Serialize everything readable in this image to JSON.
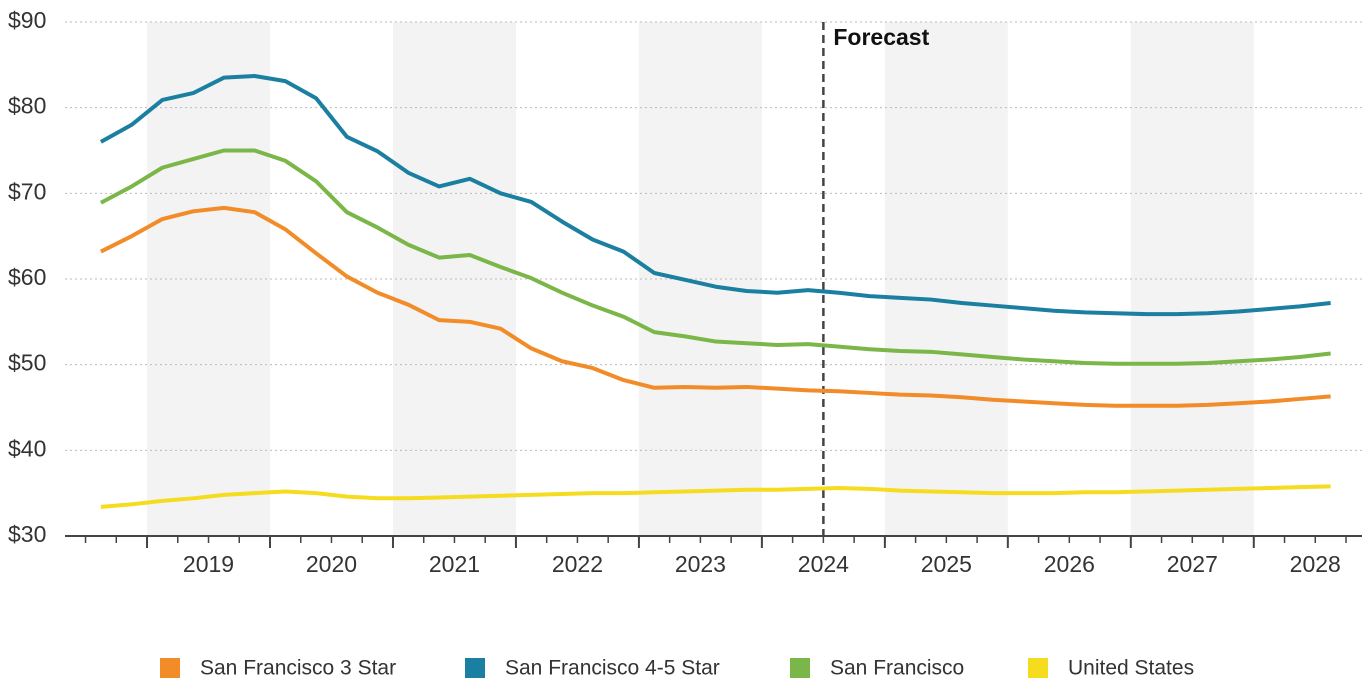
{
  "chart_data": {
    "type": "line",
    "x": [
      2018.625,
      2018.875,
      2019.125,
      2019.375,
      2019.625,
      2019.875,
      2020.125,
      2020.375,
      2020.625,
      2020.875,
      2021.125,
      2021.375,
      2021.625,
      2021.875,
      2022.125,
      2022.375,
      2022.625,
      2022.875,
      2023.125,
      2023.375,
      2023.625,
      2023.875,
      2024.125,
      2024.375,
      2024.625,
      2024.875,
      2025.125,
      2025.375,
      2025.625,
      2025.875,
      2026.125,
      2026.375,
      2026.625,
      2026.875,
      2027.125,
      2027.375,
      2027.625,
      2027.875,
      2028.125,
      2028.375,
      2028.625
    ],
    "series": [
      {
        "name": "San Francisco 3 Star",
        "color": "#f28c28",
        "values": [
          63.2,
          65,
          67,
          67.9,
          68.3,
          67.8,
          65.8,
          63,
          60.3,
          58.4,
          57,
          55.2,
          55,
          54.2,
          51.9,
          50.4,
          49.6,
          48.2,
          47.3,
          47.4,
          47.3,
          47.4,
          47.2,
          47,
          46.9,
          46.7,
          46.5,
          46.4,
          46.2,
          45.9,
          45.7,
          45.5,
          45.3,
          45.2,
          45.2,
          45.2,
          45.3,
          45.5,
          45.7,
          46,
          46.3
        ]
      },
      {
        "name": "San Francisco 4-5 Star",
        "color": "#1a7fa0",
        "values": [
          76,
          78,
          80.9,
          81.7,
          83.5,
          83.7,
          83.1,
          81.1,
          76.6,
          74.9,
          72.4,
          70.8,
          71.7,
          70,
          69,
          66.7,
          64.6,
          63.2,
          60.7,
          59.9,
          59.1,
          58.6,
          58.4,
          58.7,
          58.4,
          58,
          57.8,
          57.6,
          57.2,
          56.9,
          56.6,
          56.3,
          56.1,
          56,
          55.9,
          55.9,
          56,
          56.2,
          56.5,
          56.8,
          57.2
        ]
      },
      {
        "name": "San Francisco",
        "color": "#7ab648",
        "values": [
          68.9,
          70.8,
          73,
          74,
          75,
          75,
          73.8,
          71.4,
          67.8,
          66,
          64,
          62.5,
          62.8,
          61.4,
          60.1,
          58.4,
          56.9,
          55.6,
          53.8,
          53.3,
          52.7,
          52.5,
          52.3,
          52.4,
          52.1,
          51.8,
          51.6,
          51.5,
          51.2,
          50.9,
          50.6,
          50.4,
          50.2,
          50.1,
          50.1,
          50.1,
          50.2,
          50.4,
          50.6,
          50.9,
          51.3
        ]
      },
      {
        "name": "United States",
        "color": "#f5dc1e",
        "values": [
          33.4,
          33.7,
          34.1,
          34.4,
          34.8,
          35,
          35.2,
          35,
          34.6,
          34.4,
          34.4,
          34.5,
          34.6,
          34.7,
          34.8,
          34.9,
          35,
          35,
          35.1,
          35.2,
          35.3,
          35.4,
          35.4,
          35.5,
          35.6,
          35.5,
          35.3,
          35.2,
          35.1,
          35,
          35,
          35,
          35.1,
          35.1,
          35.2,
          35.3,
          35.4,
          35.5,
          35.6,
          35.7,
          35.8
        ]
      }
    ],
    "xlim": [
      2018.333,
      2028.88
    ],
    "xticks": [
      2019,
      2020,
      2021,
      2022,
      2023,
      2024,
      2025,
      2026,
      2027,
      2028
    ],
    "ylim": [
      30,
      90
    ],
    "yticks": [
      {
        "value": 30,
        "label": "$30"
      },
      {
        "value": 40,
        "label": "$40"
      },
      {
        "value": 50,
        "label": "$50"
      },
      {
        "value": 60,
        "label": "$60"
      },
      {
        "value": 70,
        "label": "$70"
      },
      {
        "value": 80,
        "label": "$80"
      },
      {
        "value": 90,
        "label": "$90"
      }
    ],
    "grid": true,
    "forecast_x": 2024.5,
    "forecast_label": "Forecast",
    "legend": "bottom"
  }
}
